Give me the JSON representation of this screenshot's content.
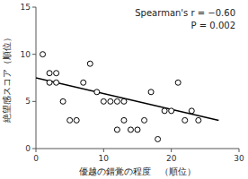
{
  "chart_data": {
    "type": "scatter",
    "xlabel": "優越の錯覚の程度　（順位）",
    "ylabel": "絶望感スコア（順位）",
    "xlim": [
      0,
      30
    ],
    "ylim": [
      0,
      15
    ],
    "xticks": [
      0,
      10,
      20,
      30
    ],
    "yticks": [
      0,
      5,
      10,
      15
    ],
    "series": [
      {
        "type": "scatter",
        "color": "black",
        "marker": "circle",
        "x": [
          1,
          2,
          2,
          3,
          3,
          4,
          5,
          6,
          7,
          8,
          9,
          10,
          11,
          12,
          12,
          13,
          13,
          14,
          15,
          16,
          17,
          18,
          19,
          20,
          21,
          22,
          23,
          24
        ],
        "values": [
          10,
          7,
          8,
          7,
          8,
          5,
          3,
          3,
          7,
          9,
          6,
          5,
          5,
          5,
          2,
          5,
          3,
          2,
          2,
          3,
          6,
          1,
          4,
          4,
          7,
          3,
          4,
          3
        ]
      },
      {
        "type": "line",
        "color": "black",
        "line_style": "solid",
        "x": [
          0,
          27
        ],
        "values": [
          7.5,
          3.0
        ]
      }
    ],
    "annotations": [
      "Spearman's r = −0.60",
      "P = 0.002"
    ]
  }
}
